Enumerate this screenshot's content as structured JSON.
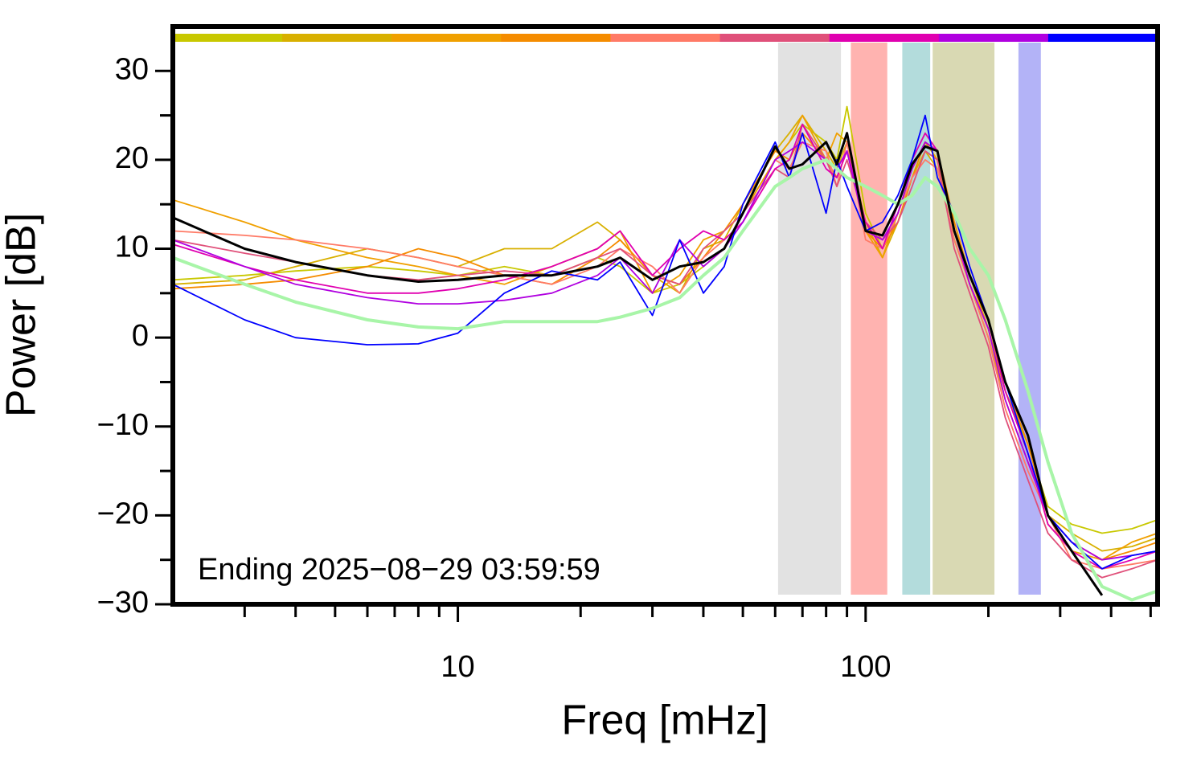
{
  "chart_data": {
    "type": "line",
    "xlabel": "Freq [mHz]",
    "ylabel": "Power [dB]",
    "annotation": "Ending 2025−08−29 03:59:59",
    "log_x": true,
    "xlim": [
      2,
      520
    ],
    "ylim": [
      -30,
      35
    ],
    "xticks": [
      10,
      100
    ],
    "xminorticks": [
      3,
      4,
      5,
      6,
      7,
      8,
      9,
      20,
      30,
      40,
      50,
      60,
      70,
      80,
      90,
      200,
      300,
      400,
      500
    ],
    "yticks": [
      {
        "value": -30,
        "label": "−30"
      },
      {
        "value": -20,
        "label": "−20"
      },
      {
        "value": -10,
        "label": "−10"
      },
      0,
      10,
      20,
      30
    ],
    "yminorticks": [
      -25,
      -15,
      -5,
      5,
      15,
      25
    ],
    "bands": [
      {
        "x": [
          61,
          87
        ],
        "color": "#e2e2e2"
      },
      {
        "x": [
          92,
          113
        ],
        "color": "#ffb3b0"
      },
      {
        "x": [
          123,
          144
        ],
        "color": "#b3dcdc"
      },
      {
        "x": [
          146,
          207
        ],
        "color": "#d9d9b3"
      },
      {
        "x": [
          237,
          269
        ],
        "color": "#b3b3f7"
      }
    ],
    "x": [
      2,
      3,
      4,
      6,
      8,
      10,
      13,
      17,
      22,
      25,
      30,
      35,
      40,
      45,
      50,
      60,
      65,
      70,
      80,
      85,
      90,
      100,
      110,
      120,
      130,
      140,
      150,
      165,
      180,
      200,
      220,
      250,
      280,
      320,
      380,
      450,
      520
    ],
    "series": [
      {
        "color": "#c8c800",
        "values": [
          6.5,
          7,
          7.5,
          8,
          7.5,
          7,
          8,
          7,
          9,
          8,
          5,
          6,
          8,
          10,
          14,
          20,
          22,
          24,
          22,
          20,
          26,
          14,
          10,
          14,
          19,
          22,
          20,
          12,
          6,
          1,
          -6,
          -12,
          -19,
          -21,
          -22,
          -21.5,
          -20.5
        ]
      },
      {
        "color": "#d8b000",
        "values": [
          6,
          6.5,
          8,
          10,
          9,
          8,
          10,
          10,
          13,
          11,
          7,
          5,
          10,
          11,
          15,
          21,
          23,
          25,
          21,
          19,
          22,
          13,
          9,
          13,
          18,
          21,
          19,
          11,
          6,
          0,
          -7,
          -14,
          -20,
          -22,
          -24,
          -23.5,
          -22.5
        ]
      },
      {
        "color": "#f0a000",
        "values": [
          15.5,
          13,
          11,
          9,
          8,
          7,
          6,
          8,
          10,
          12,
          5,
          7,
          11,
          12,
          14,
          20,
          22,
          25,
          20,
          23,
          22,
          12,
          9,
          14,
          19,
          22,
          20,
          12,
          7,
          1,
          -6,
          -13,
          -21,
          -24,
          -25,
          -23,
          -22
        ]
      },
      {
        "color": "#f58c00",
        "values": [
          5.5,
          6,
          6.5,
          8,
          10,
          9,
          7,
          6,
          9,
          11,
          7,
          6,
          9,
          12,
          15,
          21,
          20,
          23,
          20,
          18,
          21,
          12,
          10,
          13,
          18,
          22,
          21,
          13,
          7,
          2,
          -5,
          -12,
          -20,
          -23,
          -25,
          -24,
          -23
        ]
      },
      {
        "color": "#ff7a66",
        "values": [
          12,
          11.5,
          11,
          10,
          9,
          8,
          7,
          6,
          8,
          10,
          8,
          5,
          9,
          11,
          13,
          20,
          19,
          22,
          21,
          17,
          22,
          11,
          10,
          14,
          18,
          20,
          19,
          11,
          6,
          0,
          -8,
          -15,
          -20,
          -25,
          -26,
          -25.5,
          -25
        ]
      },
      {
        "color": "#e0507a",
        "values": [
          11,
          9.5,
          8.5,
          7,
          6.5,
          7,
          7.5,
          7,
          9,
          10,
          7,
          6,
          10,
          12,
          14,
          19,
          18,
          24,
          20,
          17,
          20,
          13,
          11,
          13,
          17,
          21,
          20,
          10,
          5,
          -1,
          -9,
          -16,
          -22,
          -25,
          -27,
          -26,
          -25
        ]
      },
      {
        "color": "#e000b0",
        "values": [
          10.5,
          8,
          6.5,
          5,
          5,
          5.5,
          6.5,
          8,
          10,
          12,
          7,
          10,
          12,
          11,
          13,
          19,
          20,
          24,
          19,
          18,
          21,
          13,
          10,
          15,
          20,
          23,
          21,
          12,
          7,
          2,
          -6,
          -13,
          -21,
          -24,
          -26,
          -25,
          -24
        ]
      },
      {
        "color": "#b000e0",
        "values": [
          11,
          8,
          6,
          4.5,
          3.8,
          3.8,
          4.2,
          5,
          7,
          9,
          5,
          11,
          8,
          10,
          13,
          20,
          21,
          22,
          20,
          19,
          21,
          12,
          11,
          14,
          19,
          22,
          21,
          12,
          6,
          1,
          -7,
          -14,
          -20,
          -23,
          -25,
          -24.5,
          -24
        ]
      },
      {
        "color": "#0000ff",
        "values": [
          6,
          2,
          0,
          -0.8,
          -0.7,
          0.5,
          5,
          7.5,
          6.5,
          8.5,
          2.5,
          11,
          5,
          8,
          15,
          22,
          18,
          23,
          14,
          20,
          17,
          12,
          13,
          16,
          20,
          25,
          18,
          14,
          8,
          2,
          -5,
          -13,
          -20,
          -23,
          -26,
          -24.5,
          -24
        ]
      },
      {
        "color": "#a8f5a8",
        "width": 4,
        "values": [
          9,
          6,
          4,
          2,
          1.2,
          1,
          1.8,
          1.8,
          1.8,
          2.3,
          3.3,
          4.5,
          7,
          9,
          12,
          17,
          18,
          19,
          20,
          19,
          18,
          17,
          16,
          15,
          16,
          18,
          17,
          14,
          10,
          7,
          2,
          -6,
          -14,
          -22,
          -28,
          -29.5,
          -28.5
        ]
      },
      {
        "color": "#000000",
        "width": 3,
        "values": [
          13.5,
          10,
          8.5,
          7,
          6.3,
          6.5,
          7,
          7,
          8,
          9,
          6.5,
          8,
          8.5,
          10,
          14,
          21.5,
          19,
          19.5,
          22,
          19.5,
          23,
          12,
          11.5,
          15,
          19.5,
          21.5,
          21,
          12,
          7,
          2,
          -5,
          -11,
          -20,
          -24,
          -29,
          null,
          null
        ]
      }
    ]
  }
}
